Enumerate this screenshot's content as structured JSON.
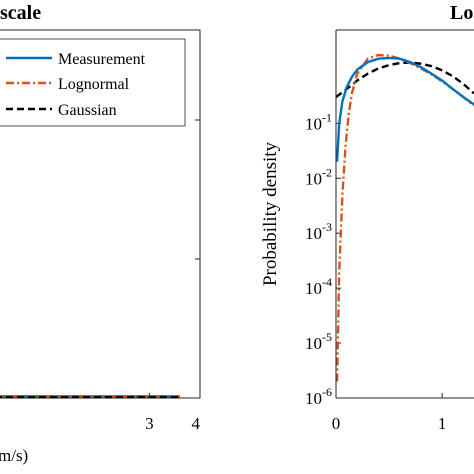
{
  "chart_data": [
    {
      "type": "line",
      "title": "scale",
      "xlabel": "m/s)",
      "ylabel": "",
      "xlim": [
        -0.05,
        4
      ],
      "ylim": [
        0,
        2.2
      ],
      "x_ticks": [
        3,
        4
      ],
      "grid": false,
      "legend": {
        "position": "top-right",
        "entries": [
          "Measurement",
          "Lognormal",
          "Gaussian"
        ]
      },
      "series": [
        {
          "name": "Measurement",
          "color": "#0072BD",
          "style": "solid",
          "x": [
            -0.05,
            0.5,
            1,
            1.5,
            2,
            2.5,
            3,
            3.6
          ],
          "y": [
            0.01,
            0.01,
            0.01,
            0.01,
            0.01,
            0.01,
            0.01,
            0.01
          ]
        },
        {
          "name": "Lognormal",
          "color": "#D95319",
          "style": "dashdot",
          "x": [
            -0.05,
            0.5,
            1,
            1.5,
            2,
            2.5,
            3,
            3.6
          ],
          "y": [
            0.01,
            0.01,
            0.01,
            0.01,
            0.01,
            0.01,
            0.01,
            0.01
          ]
        },
        {
          "name": "Gaussian",
          "color": "#000000",
          "style": "dashed",
          "x": [
            -0.05,
            0.5,
            1,
            1.5,
            2,
            2.5,
            3,
            3.6
          ],
          "y": [
            0.005,
            0.005,
            0.005,
            0.005,
            0.005,
            0.005,
            0.005,
            0.005
          ]
        }
      ]
    },
    {
      "type": "line",
      "title": "Lo",
      "xlabel": "",
      "ylabel": "Probability density",
      "xlim": [
        0,
        1.3
      ],
      "ylim": [
        1e-06,
        5
      ],
      "yscale": "log",
      "x_ticks": [
        0,
        1
      ],
      "y_ticks": [
        {
          "value": 1e-06,
          "base": "10",
          "exp": "-6"
        },
        {
          "value": 1e-05,
          "base": "10",
          "exp": "-5"
        },
        {
          "value": 0.0001,
          "base": "10",
          "exp": "-4"
        },
        {
          "value": 0.001,
          "base": "10",
          "exp": "-3"
        },
        {
          "value": 0.01,
          "base": "10",
          "exp": "-2"
        },
        {
          "value": 0.1,
          "base": "10",
          "exp": "-1"
        }
      ],
      "grid": false,
      "series": [
        {
          "name": "Measurement",
          "color": "#0072BD",
          "style": "solid",
          "x": [
            0.01,
            0.03,
            0.06,
            0.1,
            0.15,
            0.2,
            0.3,
            0.4,
            0.5,
            0.6,
            0.7,
            0.8,
            0.9,
            1.0,
            1.1,
            1.2,
            1.3
          ],
          "y": [
            0.02,
            0.1,
            0.25,
            0.45,
            0.7,
            0.95,
            1.3,
            1.5,
            1.55,
            1.5,
            1.3,
            1.05,
            0.8,
            0.6,
            0.42,
            0.3,
            0.22
          ]
        },
        {
          "name": "Lognormal",
          "color": "#D95319",
          "style": "dashdot",
          "x": [
            0.01,
            0.03,
            0.06,
            0.09,
            0.12,
            0.15,
            0.2,
            0.3,
            0.4,
            0.5,
            0.6,
            0.7,
            0.8,
            0.9,
            1.0,
            1.1,
            1.2,
            1.3
          ],
          "y": [
            2e-06,
            0.0002,
            0.005,
            0.04,
            0.15,
            0.35,
            0.8,
            1.5,
            1.75,
            1.7,
            1.5,
            1.25,
            1.0,
            0.78,
            0.58,
            0.42,
            0.3,
            0.21
          ]
        },
        {
          "name": "Gaussian",
          "color": "#000000",
          "style": "dashed",
          "x": [
            0,
            0.1,
            0.2,
            0.3,
            0.4,
            0.5,
            0.6,
            0.7,
            0.8,
            0.9,
            1.0,
            1.1,
            1.2,
            1.3
          ],
          "y": [
            0.3,
            0.42,
            0.6,
            0.8,
            1.0,
            1.15,
            1.25,
            1.28,
            1.22,
            1.1,
            0.92,
            0.72,
            0.52,
            0.35
          ]
        }
      ]
    }
  ]
}
